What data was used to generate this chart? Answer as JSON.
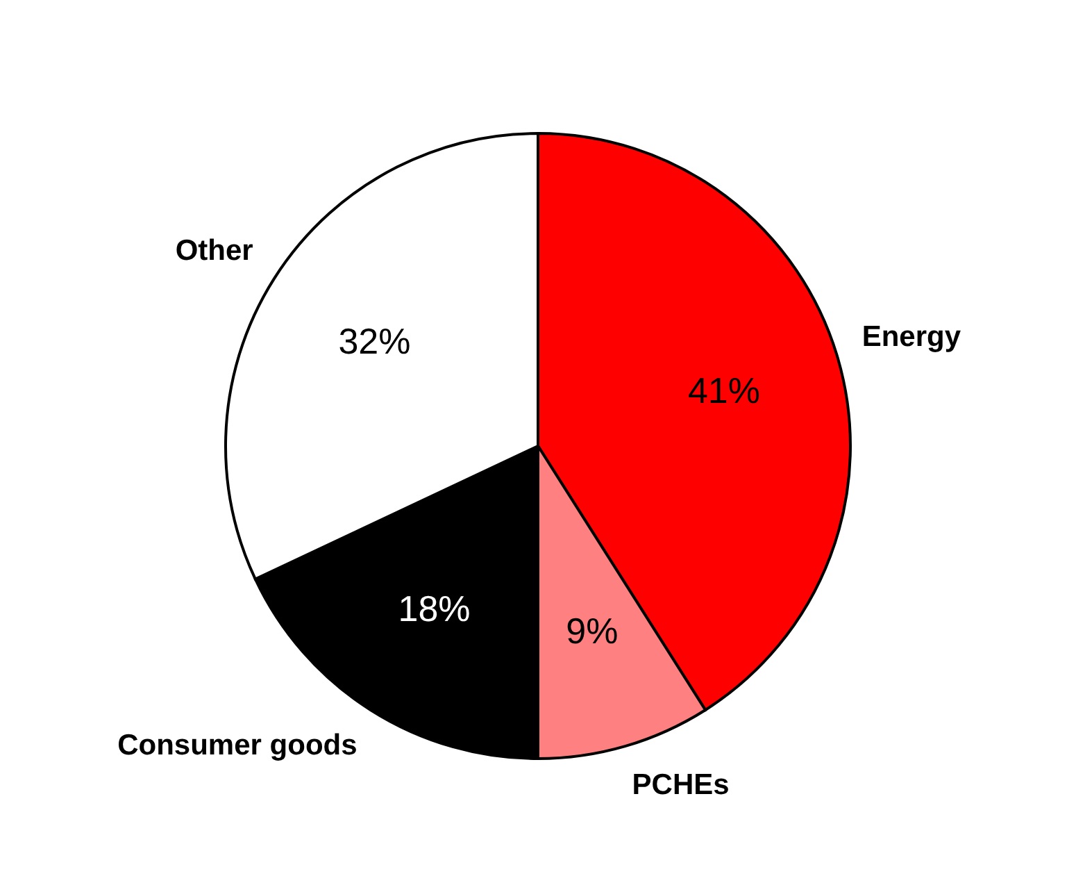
{
  "chart_data": {
    "type": "pie",
    "categories": [
      "Energy",
      "PCHEs",
      "Consumer goods",
      "Other"
    ],
    "values": [
      41,
      9,
      18,
      32
    ],
    "colors": [
      "#ff0000",
      "#ff8080",
      "#000000",
      "#ffffff"
    ],
    "value_labels": [
      "41%",
      "9%",
      "18%",
      "32%"
    ]
  }
}
